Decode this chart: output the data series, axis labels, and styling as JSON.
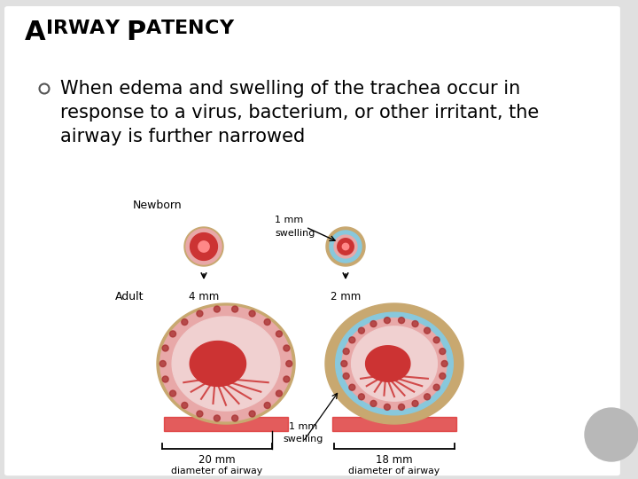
{
  "bg_color": "#e0e0e0",
  "slide_color": "#ffffff",
  "title_color": "#000000",
  "body_color": "#000000",
  "title_fontsize": 22,
  "body_fontsize": 15,
  "bullet_line1": "When edema and swelling of the trachea occur in",
  "bullet_line2": "response to a virus, bacterium, or other irritant, the",
  "bullet_line3": "airway is further narrowed",
  "label_newborn": "Newborn",
  "label_adult": "Adult",
  "label_4mm": "4 mm",
  "label_2mm": "2 mm",
  "label_20mm": "20 mm",
  "label_18mm": "18 mm",
  "label_1mm": "1 mm",
  "label_swelling": "swelling",
  "label_doa": "diameter of airway",
  "gray_circle_color": "#b8b8b8",
  "outer_brown": "#c8a870",
  "cartilage_blue": "#88c8dc",
  "mucosa_pink": "#e8a8a8",
  "lumen_light": "#f0d0d0",
  "red_tissue": "#cc3333",
  "bright_red": "#ee4444"
}
